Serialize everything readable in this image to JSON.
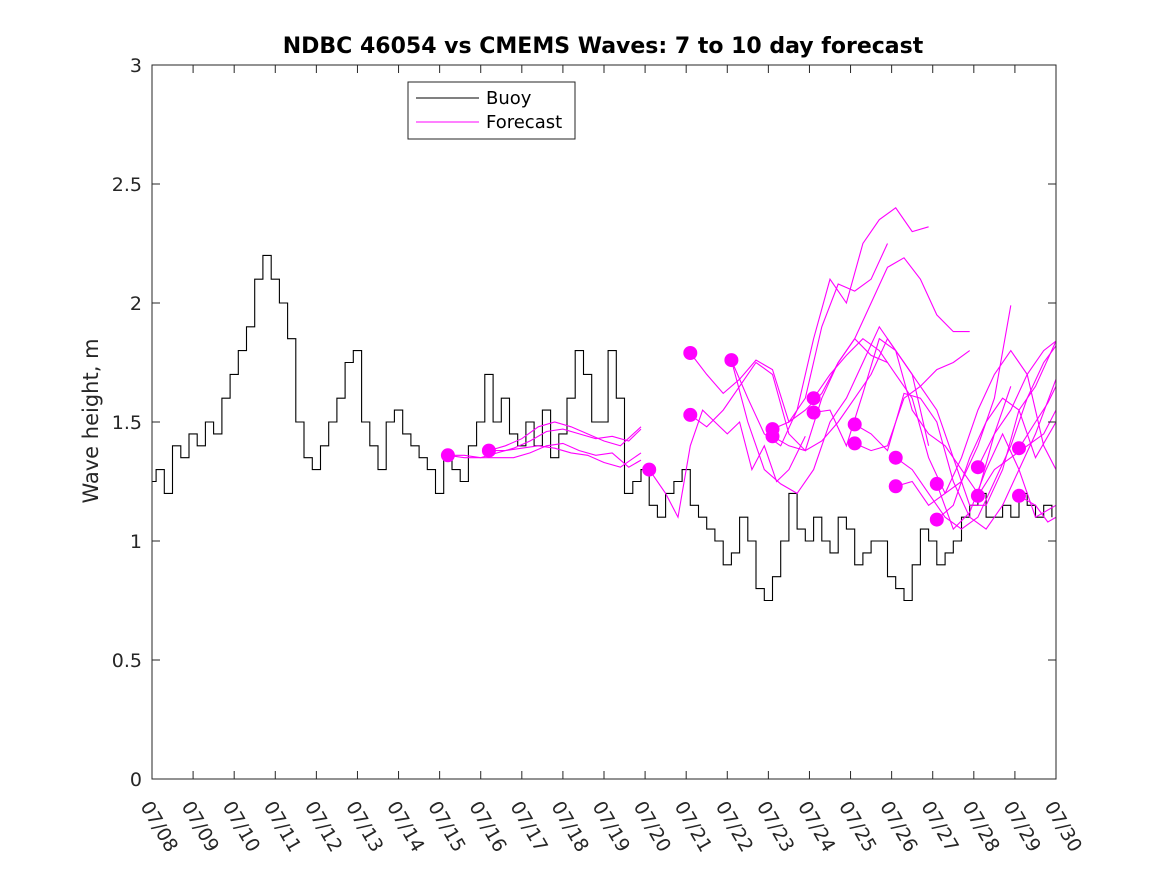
{
  "chart_data": {
    "type": "line",
    "title": "NDBC 46054 vs CMEMS Waves: 7 to 10 day forecast",
    "xlabel": "",
    "ylabel": "Wave height, m",
    "ylim": [
      0,
      3
    ],
    "yticks": [
      "0",
      "0.5",
      "1",
      "1.5",
      "2",
      "2.5",
      "3"
    ],
    "xlim": [
      "07/08",
      "07/30"
    ],
    "xticks": [
      "07/08",
      "07/09",
      "07/10",
      "07/11",
      "07/12",
      "07/13",
      "07/14",
      "07/15",
      "07/16",
      "07/17",
      "07/18",
      "07/19",
      "07/20",
      "07/21",
      "07/22",
      "07/23",
      "07/24",
      "07/25",
      "07/26",
      "07/27",
      "07/28",
      "07/29",
      "07/30"
    ],
    "grid": false,
    "legend": {
      "position": "top-left",
      "entries": [
        "Buoy",
        "Forecast"
      ]
    },
    "colors": {
      "buoy": "#000000",
      "forecast": "#ff00ff"
    },
    "buoy": {
      "name": "Buoy",
      "x": [
        0.0,
        0.1,
        0.3,
        0.5,
        0.7,
        0.9,
        1.1,
        1.3,
        1.5,
        1.7,
        1.9,
        2.1,
        2.3,
        2.5,
        2.7,
        2.9,
        3.1,
        3.3,
        3.5,
        3.7,
        3.9,
        4.1,
        4.3,
        4.5,
        4.7,
        4.9,
        5.1,
        5.3,
        5.5,
        5.7,
        5.9,
        6.1,
        6.3,
        6.5,
        6.7,
        6.9,
        7.1,
        7.3,
        7.5,
        7.7,
        7.9,
        8.1,
        8.3,
        8.5,
        8.7,
        8.9,
        9.1,
        9.3,
        9.5,
        9.7,
        9.9,
        10.1,
        10.3,
        10.5,
        10.7,
        10.9,
        11.1,
        11.3,
        11.5,
        11.7,
        11.9,
        12.1,
        12.3,
        12.5,
        12.7,
        12.9,
        13.1,
        13.3,
        13.5,
        13.7,
        13.9,
        14.1,
        14.3,
        14.5,
        14.7,
        14.9,
        15.1,
        15.3,
        15.5,
        15.7,
        15.9,
        16.1,
        16.3,
        16.5,
        16.7,
        16.9,
        17.1,
        17.3,
        17.5,
        17.7,
        17.9,
        18.1,
        18.3,
        18.5,
        18.7,
        18.9,
        19.1,
        19.3,
        19.5,
        19.7,
        19.9,
        20.1,
        20.3,
        20.5,
        20.7,
        20.9,
        21.1,
        21.3,
        21.5,
        21.7,
        21.9
      ],
      "y": [
        1.25,
        1.3,
        1.2,
        1.4,
        1.35,
        1.45,
        1.4,
        1.5,
        1.45,
        1.6,
        1.7,
        1.8,
        1.9,
        2.1,
        2.2,
        2.1,
        2.0,
        1.85,
        1.5,
        1.35,
        1.3,
        1.4,
        1.5,
        1.6,
        1.75,
        1.8,
        1.5,
        1.4,
        1.3,
        1.5,
        1.55,
        1.45,
        1.4,
        1.35,
        1.3,
        1.2,
        1.35,
        1.3,
        1.25,
        1.4,
        1.5,
        1.7,
        1.5,
        1.6,
        1.45,
        1.4,
        1.5,
        1.4,
        1.55,
        1.35,
        1.45,
        1.6,
        1.8,
        1.7,
        1.5,
        1.5,
        1.8,
        1.6,
        1.2,
        1.25,
        1.3,
        1.15,
        1.1,
        1.2,
        1.25,
        1.3,
        1.15,
        1.1,
        1.05,
        1.0,
        0.9,
        0.95,
        1.1,
        1.0,
        0.8,
        0.75,
        0.85,
        1.0,
        1.2,
        1.05,
        1.0,
        1.1,
        1.0,
        0.95,
        1.1,
        1.05,
        0.9,
        0.95,
        1.0,
        1.0,
        0.85,
        0.8,
        0.75,
        0.9,
        1.05,
        1.0,
        0.9,
        0.95,
        1.0,
        1.1,
        1.15,
        1.2,
        1.1,
        1.1,
        1.15,
        1.1,
        1.2,
        1.15,
        1.1,
        1.15,
        1.1
      ]
    },
    "forecast_runs": [
      {
        "x": [
          7.2,
          7.6,
          8.0,
          8.4,
          8.8,
          9.2,
          9.6,
          10.0,
          10.4,
          10.8,
          11.2,
          11.6,
          11.9
        ],
        "y": [
          1.36,
          1.36,
          1.35,
          1.37,
          1.39,
          1.42,
          1.46,
          1.47,
          1.45,
          1.43,
          1.44,
          1.42,
          1.47
        ]
      },
      {
        "x": [
          7.2,
          7.6,
          8.0,
          8.4,
          8.8,
          9.2,
          9.6,
          10.0,
          10.4,
          10.8,
          11.2,
          11.6,
          11.9
        ],
        "y": [
          1.36,
          1.35,
          1.35,
          1.35,
          1.35,
          1.37,
          1.4,
          1.41,
          1.38,
          1.36,
          1.37,
          1.31,
          1.34
        ]
      },
      {
        "x": [
          8.2,
          8.6,
          9.0,
          9.4,
          9.8,
          10.2,
          10.6,
          11.0,
          11.4,
          11.9
        ],
        "y": [
          1.38,
          1.4,
          1.43,
          1.48,
          1.5,
          1.48,
          1.45,
          1.42,
          1.4,
          1.48
        ]
      },
      {
        "x": [
          8.2,
          8.6,
          9.0,
          9.4,
          9.8,
          10.2,
          10.6,
          11.0,
          11.4,
          11.9
        ],
        "y": [
          1.38,
          1.38,
          1.39,
          1.4,
          1.39,
          1.37,
          1.36,
          1.33,
          1.31,
          1.37
        ]
      },
      {
        "x": [
          12.1,
          12.5,
          12.8,
          13.1,
          13.4,
          13.7,
          14.0,
          14.3,
          14.6,
          14.9,
          15.2,
          15.5,
          15.9
        ],
        "y": [
          1.3,
          1.2,
          1.1,
          1.4,
          1.55,
          1.5,
          1.45,
          1.5,
          1.3,
          1.4,
          1.25,
          1.3,
          1.44
        ]
      },
      {
        "x": [
          13.1,
          13.5,
          13.9,
          14.3,
          14.7,
          15.1,
          15.5,
          15.9,
          16.3,
          16.7,
          17.1,
          17.5,
          17.9
        ],
        "y": [
          1.79,
          1.7,
          1.62,
          1.68,
          1.76,
          1.72,
          1.5,
          1.6,
          1.9,
          2.08,
          2.05,
          2.1,
          2.25
        ]
      },
      {
        "x": [
          13.1,
          13.5,
          13.9,
          14.3,
          14.7,
          15.1,
          15.5,
          15.9,
          16.3,
          16.7,
          17.1,
          17.5,
          17.9
        ],
        "y": [
          1.53,
          1.48,
          1.55,
          1.65,
          1.75,
          1.7,
          1.45,
          1.38,
          1.6,
          1.75,
          1.85,
          1.78,
          1.75
        ]
      },
      {
        "x": [
          14.1,
          14.5,
          14.9,
          15.3,
          15.7,
          16.1,
          16.5,
          16.9,
          17.3,
          17.7,
          18.1,
          18.5,
          18.9
        ],
        "y": [
          1.76,
          1.6,
          1.45,
          1.4,
          1.55,
          1.85,
          2.1,
          2.0,
          2.25,
          2.35,
          2.4,
          2.3,
          2.32
        ]
      },
      {
        "x": [
          14.1,
          14.5,
          14.9,
          15.3,
          15.7,
          16.1,
          16.5,
          16.9,
          17.3,
          17.7,
          18.1,
          18.5,
          18.9
        ],
        "y": [
          1.76,
          1.5,
          1.3,
          1.24,
          1.2,
          1.3,
          1.5,
          1.6,
          1.75,
          1.9,
          1.8,
          1.7,
          1.4
        ]
      },
      {
        "x": [
          15.1,
          15.5,
          15.9,
          16.3,
          16.7,
          17.1,
          17.5,
          17.9,
          18.3,
          18.7,
          19.1,
          19.5,
          19.9
        ],
        "y": [
          1.47,
          1.5,
          1.55,
          1.62,
          1.75,
          1.85,
          2.0,
          2.15,
          2.19,
          2.1,
          1.95,
          1.88,
          1.88
        ]
      },
      {
        "x": [
          15.1,
          15.5,
          15.9,
          16.3,
          16.7,
          17.1,
          17.5,
          17.9,
          18.3,
          18.7,
          19.1,
          19.5,
          19.9
        ],
        "y": [
          1.44,
          1.4,
          1.38,
          1.42,
          1.5,
          1.6,
          1.7,
          1.85,
          1.75,
          1.65,
          1.72,
          1.75,
          1.8
        ]
      },
      {
        "x": [
          16.1,
          16.5,
          16.9,
          17.3,
          17.7,
          18.1,
          18.5,
          18.9,
          19.3,
          19.7,
          20.1,
          20.5,
          20.9
        ],
        "y": [
          1.6,
          1.7,
          1.78,
          1.85,
          1.8,
          1.7,
          1.6,
          1.35,
          1.2,
          1.25,
          1.4,
          1.6,
          1.99
        ]
      },
      {
        "x": [
          16.1,
          16.5,
          16.9,
          17.3,
          17.7,
          18.1,
          18.5,
          18.9,
          19.3,
          19.7,
          20.1,
          20.5,
          20.9
        ],
        "y": [
          1.54,
          1.55,
          1.4,
          1.62,
          1.85,
          1.8,
          1.55,
          1.45,
          1.4,
          1.3,
          1.2,
          1.45,
          1.65
        ]
      },
      {
        "x": [
          17.1,
          17.5,
          17.9,
          18.3,
          18.7,
          19.1,
          19.5,
          19.9,
          20.3,
          20.7,
          21.1,
          21.5,
          22.0
        ],
        "y": [
          1.49,
          1.45,
          1.38,
          1.62,
          1.6,
          1.5,
          1.25,
          1.1,
          1.05,
          1.15,
          1.3,
          1.45,
          1.68
        ]
      },
      {
        "x": [
          17.1,
          17.5,
          17.9,
          18.3,
          18.7,
          19.1,
          19.5,
          19.9,
          20.3,
          20.7,
          21.1,
          21.5,
          22.0
        ],
        "y": [
          1.41,
          1.38,
          1.4,
          1.6,
          1.65,
          1.55,
          1.35,
          1.15,
          1.15,
          1.3,
          1.55,
          1.65,
          1.84
        ]
      },
      {
        "x": [
          18.1,
          18.5,
          18.9,
          19.3,
          19.7,
          20.1,
          20.5,
          20.9,
          21.3,
          21.7,
          22.0
        ],
        "y": [
          1.35,
          1.3,
          1.2,
          1.1,
          1.05,
          1.1,
          1.25,
          1.4,
          1.6,
          1.75,
          1.82
        ]
      },
      {
        "x": [
          18.1,
          18.5,
          18.9,
          19.3,
          19.7,
          20.1,
          20.5,
          20.9,
          21.3,
          21.7,
          22.0
        ],
        "y": [
          1.23,
          1.25,
          1.15,
          1.2,
          1.35,
          1.55,
          1.7,
          1.8,
          1.7,
          1.4,
          1.3
        ]
      },
      {
        "x": [
          19.1,
          19.5,
          19.9,
          20.3,
          20.7,
          21.1,
          21.5,
          22.0
        ],
        "y": [
          1.24,
          1.05,
          1.12,
          1.3,
          1.45,
          1.3,
          1.1,
          1.15
        ]
      },
      {
        "x": [
          19.1,
          19.5,
          19.9,
          20.3,
          20.7,
          21.1,
          21.5,
          22.0
        ],
        "y": [
          1.09,
          1.15,
          1.35,
          1.5,
          1.6,
          1.55,
          1.35,
          1.5
        ]
      },
      {
        "x": [
          20.1,
          20.5,
          20.9,
          21.3,
          21.7,
          22.0
        ],
        "y": [
          1.31,
          1.45,
          1.55,
          1.7,
          1.8,
          1.84
        ]
      },
      {
        "x": [
          20.1,
          20.5,
          20.9,
          21.3,
          21.7,
          22.0
        ],
        "y": [
          1.19,
          1.3,
          1.35,
          1.4,
          1.45,
          1.55
        ]
      },
      {
        "x": [
          21.1,
          21.5,
          21.8,
          22.0
        ],
        "y": [
          1.39,
          1.5,
          1.58,
          1.65
        ]
      },
      {
        "x": [
          21.1,
          21.5,
          21.8,
          22.0
        ],
        "y": [
          1.19,
          1.15,
          1.08,
          1.1
        ]
      }
    ],
    "forecast_markers": {
      "x": [
        7.2,
        8.2,
        12.1,
        13.1,
        13.1,
        14.1,
        15.1,
        15.1,
        16.1,
        16.1,
        17.1,
        17.1,
        18.1,
        18.1,
        19.1,
        19.1,
        20.1,
        20.1,
        21.1,
        21.1
      ],
      "y": [
        1.36,
        1.38,
        1.3,
        1.79,
        1.53,
        1.76,
        1.47,
        1.44,
        1.6,
        1.54,
        1.49,
        1.41,
        1.35,
        1.23,
        1.24,
        1.09,
        1.31,
        1.19,
        1.39,
        1.19
      ]
    }
  }
}
